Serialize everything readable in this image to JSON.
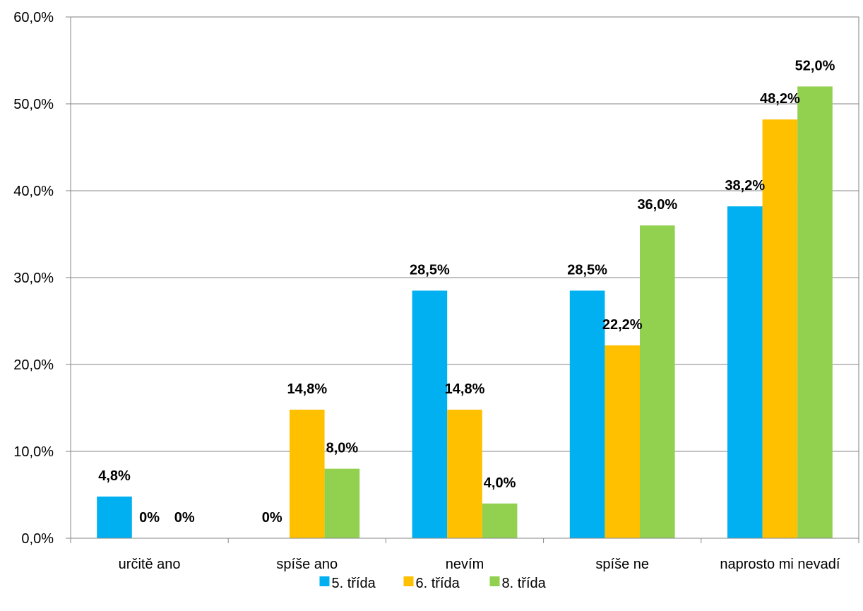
{
  "chart_data": {
    "type": "bar",
    "title": "",
    "xlabel": "",
    "ylabel": "",
    "ylim": [
      0,
      60
    ],
    "ytick_step": 10,
    "ytick_labels": [
      "0,0%",
      "10,0%",
      "20,0%",
      "30,0%",
      "40,0%",
      "50,0%",
      "60,0%"
    ],
    "grid": true,
    "legend_position": "bottom",
    "categories": [
      "určitě ano",
      "spíše ano",
      "nevím",
      "spíše ne",
      "naprosto mi nevadí"
    ],
    "series": [
      {
        "name": "5. třída",
        "color": "#00B0F0",
        "values": [
          4.8,
          0,
          28.5,
          28.5,
          38.2
        ],
        "labels": [
          "4,8%",
          "0%",
          "28,5%",
          "28,5%",
          "38,2%"
        ]
      },
      {
        "name": "6. třída",
        "color": "#FFC000",
        "values": [
          0,
          14.8,
          14.8,
          22.2,
          48.2
        ],
        "labels": [
          "0%",
          "14,8%",
          "14,8%",
          "22,2%",
          "48,2%"
        ]
      },
      {
        "name": "8. třída",
        "color": "#92D050",
        "values": [
          0,
          8.0,
          4.0,
          36.0,
          52.0
        ],
        "labels": [
          "0%",
          "8,0%",
          "4,0%",
          "36,0%",
          "52,0%"
        ]
      }
    ]
  }
}
